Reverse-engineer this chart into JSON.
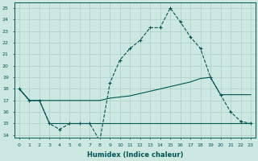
{
  "xlabel": "Humidex (Indice chaleur)",
  "bg_color": "#cce8e0",
  "grid_color": "#aacfc8",
  "line_color": "#005555",
  "x_values": [
    0,
    1,
    2,
    3,
    4,
    5,
    6,
    7,
    8,
    9,
    10,
    11,
    12,
    13,
    14,
    15,
    16,
    17,
    18,
    19,
    20,
    21,
    22,
    23
  ],
  "y_top": [
    18,
    17,
    17,
    15,
    14.5,
    15,
    15,
    15,
    13.5,
    18.5,
    20.5,
    21.5,
    22.2,
    23.3,
    23.3,
    25,
    23.8,
    22.5,
    21.5,
    19,
    17.5,
    16,
    15.2,
    15
  ],
  "y_mid": [
    18,
    17,
    17,
    17,
    17,
    17,
    17,
    17,
    17,
    17.2,
    17.3,
    17.4,
    17.6,
    17.8,
    18.0,
    18.2,
    18.4,
    18.6,
    18.9,
    19.0,
    17.5,
    17.5,
    17.5,
    17.5
  ],
  "y_bot": [
    18,
    17,
    17,
    15,
    15,
    15,
    15,
    15,
    15,
    15,
    15,
    15,
    15,
    15,
    15,
    15,
    15,
    15,
    15,
    15,
    15,
    15,
    15,
    15
  ],
  "ylim": [
    13.8,
    25.5
  ],
  "yticks": [
    14,
    15,
    16,
    17,
    18,
    19,
    20,
    21,
    22,
    23,
    24,
    25
  ],
  "xlim": [
    -0.5,
    23.5
  ]
}
